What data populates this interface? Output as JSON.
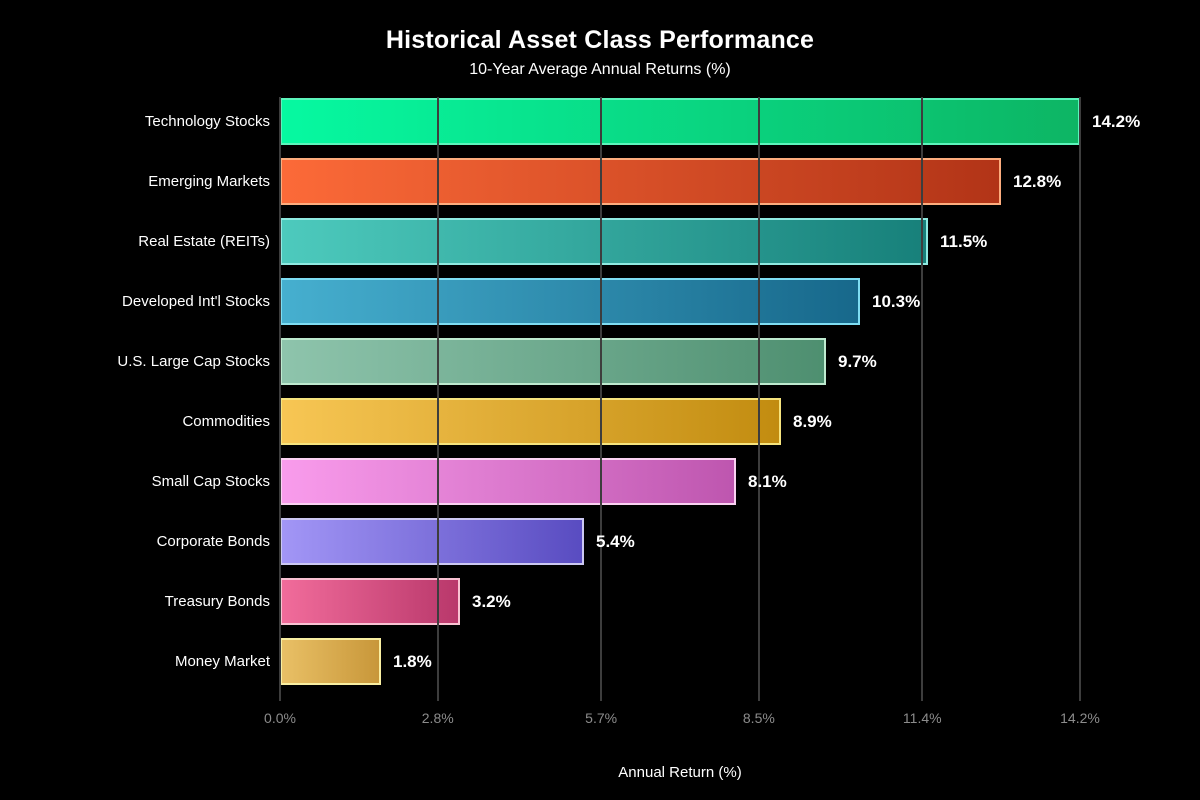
{
  "colors": {
    "background": "#000000",
    "title_text": "#ffffff",
    "subtitle_text": "#ffffff",
    "category_text": "#ffffff",
    "value_text": "#ffffff",
    "tick_text": "#8c8c8c",
    "gridline": "#3d3d3d"
  },
  "chart_data": {
    "type": "bar",
    "orientation": "horizontal",
    "title": "Historical Asset Class Performance",
    "subtitle": "10-Year Average Annual Returns (%)",
    "xlabel": "Annual Return (%)",
    "ylabel": "",
    "xlim": [
      0,
      14.2
    ],
    "grid": true,
    "legend": false,
    "x_ticks": [
      {
        "value": 0.0,
        "label": "0.0%"
      },
      {
        "value": 2.8,
        "label": "2.8%"
      },
      {
        "value": 5.7,
        "label": "5.7%"
      },
      {
        "value": 8.5,
        "label": "8.5%"
      },
      {
        "value": 11.4,
        "label": "11.4%"
      },
      {
        "value": 14.2,
        "label": "14.2%"
      }
    ],
    "bars": [
      {
        "category": "Technology Stocks",
        "value": 14.2,
        "label": "14.2%",
        "color_start": "#06f9a1",
        "color_end": "#0db564",
        "border": "#5cf5bb"
      },
      {
        "category": "Emerging Markets",
        "value": 12.8,
        "label": "12.8%",
        "color_start": "#fc6a38",
        "color_end": "#b23417",
        "border": "#fdad7e"
      },
      {
        "category": "Real Estate (REITs)",
        "value": 11.5,
        "label": "11.5%",
        "color_start": "#4dcabd",
        "color_end": "#17807a",
        "border": "#8feae1"
      },
      {
        "category": "Developed Int'l Stocks",
        "value": 10.3,
        "label": "10.3%",
        "color_start": "#46afcf",
        "color_end": "#17688b",
        "border": "#7eddf2"
      },
      {
        "category": "U.S. Large Cap Stocks",
        "value": 9.7,
        "label": "9.7%",
        "color_start": "#8ec4ac",
        "color_end": "#4e8f70",
        "border": "#beeacf"
      },
      {
        "category": "Commodities",
        "value": 8.9,
        "label": "8.9%",
        "color_start": "#f7c654",
        "color_end": "#c28c10",
        "border": "#f6e47e"
      },
      {
        "category": "Small Cap Stocks",
        "value": 8.1,
        "label": "8.1%",
        "color_start": "#f99cec",
        "color_end": "#be56af",
        "border": "#fbd2f2"
      },
      {
        "category": "Corporate Bonds",
        "value": 5.4,
        "label": "5.4%",
        "color_start": "#a296f6",
        "color_end": "#594cc1",
        "border": "#ccc8f2"
      },
      {
        "category": "Treasury Bonds",
        "value": 3.2,
        "label": "3.2%",
        "color_start": "#f16c9b",
        "color_end": "#b9386b",
        "border": "#f9c2d2"
      },
      {
        "category": "Money Market",
        "value": 1.8,
        "label": "1.8%",
        "color_start": "#e9c066",
        "color_end": "#c8973a",
        "border": "#f9efa2"
      }
    ]
  }
}
